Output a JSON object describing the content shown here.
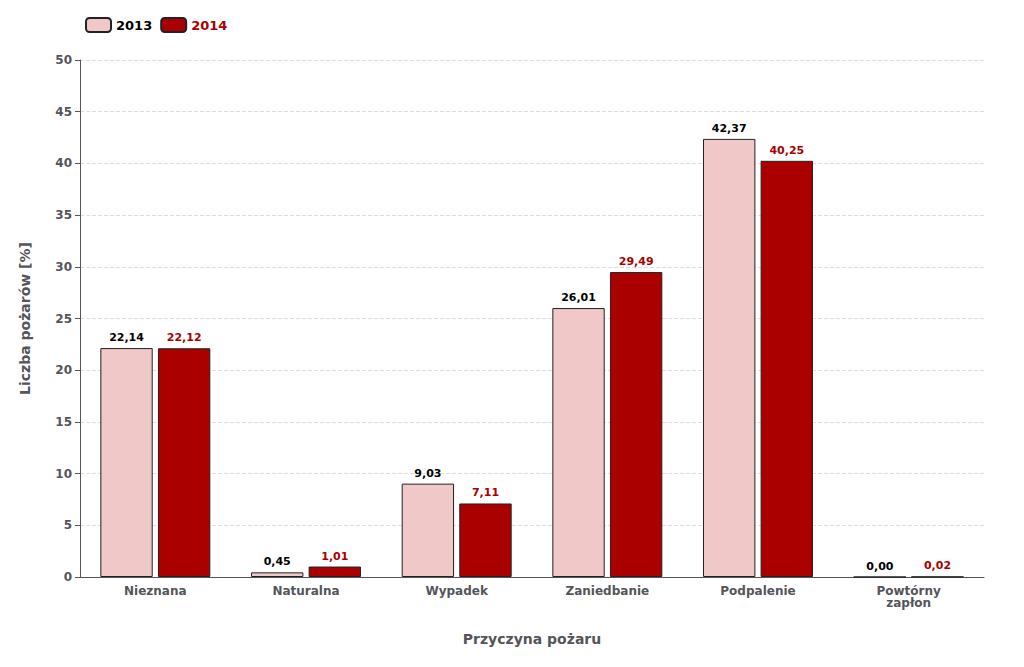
{
  "chart_data": {
    "type": "bar",
    "categories": [
      "Nieznana",
      "Naturalna",
      "Wypadek",
      "Zaniedbanie",
      "Podpalenie",
      "Powtórny\nzapłon"
    ],
    "series": [
      {
        "name": "2013",
        "color": "#f0c8c8",
        "values": [
          22.14,
          0.45,
          9.03,
          26.01,
          42.37,
          0.0
        ],
        "value_labels": [
          "22,14",
          "0,45",
          "9,03",
          "26,01",
          "42,37",
          "0,00"
        ]
      },
      {
        "name": "2014",
        "color": "#aa0000",
        "values": [
          22.12,
          1.01,
          7.11,
          29.49,
          40.25,
          0.02
        ],
        "value_labels": [
          "22,12",
          "1,01",
          "7,11",
          "29,49",
          "40,25",
          "0,02"
        ]
      }
    ],
    "xlabel": "Przyczyna pożaru",
    "ylabel": "Liczba pożarów [%]",
    "ylim": [
      0,
      50
    ],
    "yticks": [
      0,
      5,
      10,
      15,
      20,
      25,
      30,
      35,
      40,
      45,
      50
    ],
    "grid": true,
    "legend": "upper left",
    "data_labels": true
  }
}
